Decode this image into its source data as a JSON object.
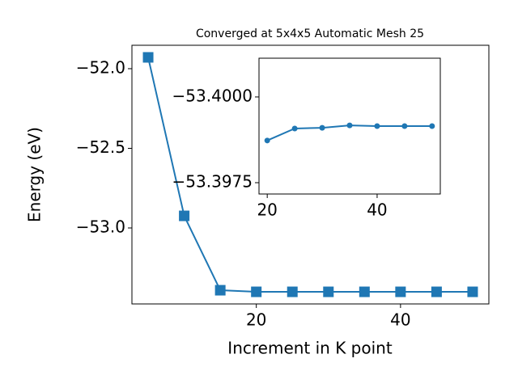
{
  "chart_data": [
    {
      "type": "line",
      "title": "Converged at 5x4x5 Automatic Mesh 25",
      "x_label": "Increment in K point",
      "y_label": "Energy (eV)",
      "x": [
        5,
        10,
        15,
        20,
        25,
        30,
        35,
        40,
        45,
        50
      ],
      "values": [
        -51.929,
        -52.924,
        -53.391,
        -53.401,
        -53.401,
        -53.401,
        -53.401,
        -53.401,
        -53.401,
        -53.401
      ],
      "color": "#1f77b4",
      "marker": "square",
      "xlim": [
        2.75,
        52.25
      ],
      "xticks": [
        20,
        40
      ],
      "ylim": [
        -53.477,
        -51.853
      ],
      "yticks": [
        {
          "value": -53.0,
          "label": "−53.0"
        },
        {
          "value": -52.5,
          "label": "−52.5"
        },
        {
          "value": -52.0,
          "label": "−52.0"
        }
      ]
    },
    {
      "type": "line",
      "x": [
        20,
        25,
        30,
        35,
        40,
        45,
        50
      ],
      "values": [
        -53.39873,
        -53.39908,
        -53.3991,
        -53.39917,
        -53.39915,
        -53.39915,
        -53.39915
      ],
      "color": "#1f77b4",
      "marker": "circle",
      "xlim": [
        18.5,
        51.5
      ],
      "xticks": [
        20,
        40
      ],
      "ylim": [
        -53.39717,
        -53.40113
      ],
      "yticks": [
        {
          "value": -53.3975,
          "label": "−53.3975"
        },
        {
          "value": -53.4,
          "label": "−53.4000"
        }
      ]
    }
  ]
}
